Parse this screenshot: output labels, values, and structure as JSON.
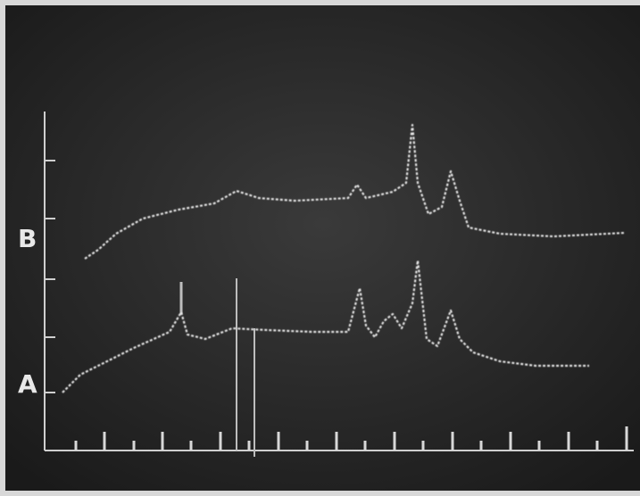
{
  "labels": {
    "trace_b": "B",
    "trace_a": "A"
  }
}
